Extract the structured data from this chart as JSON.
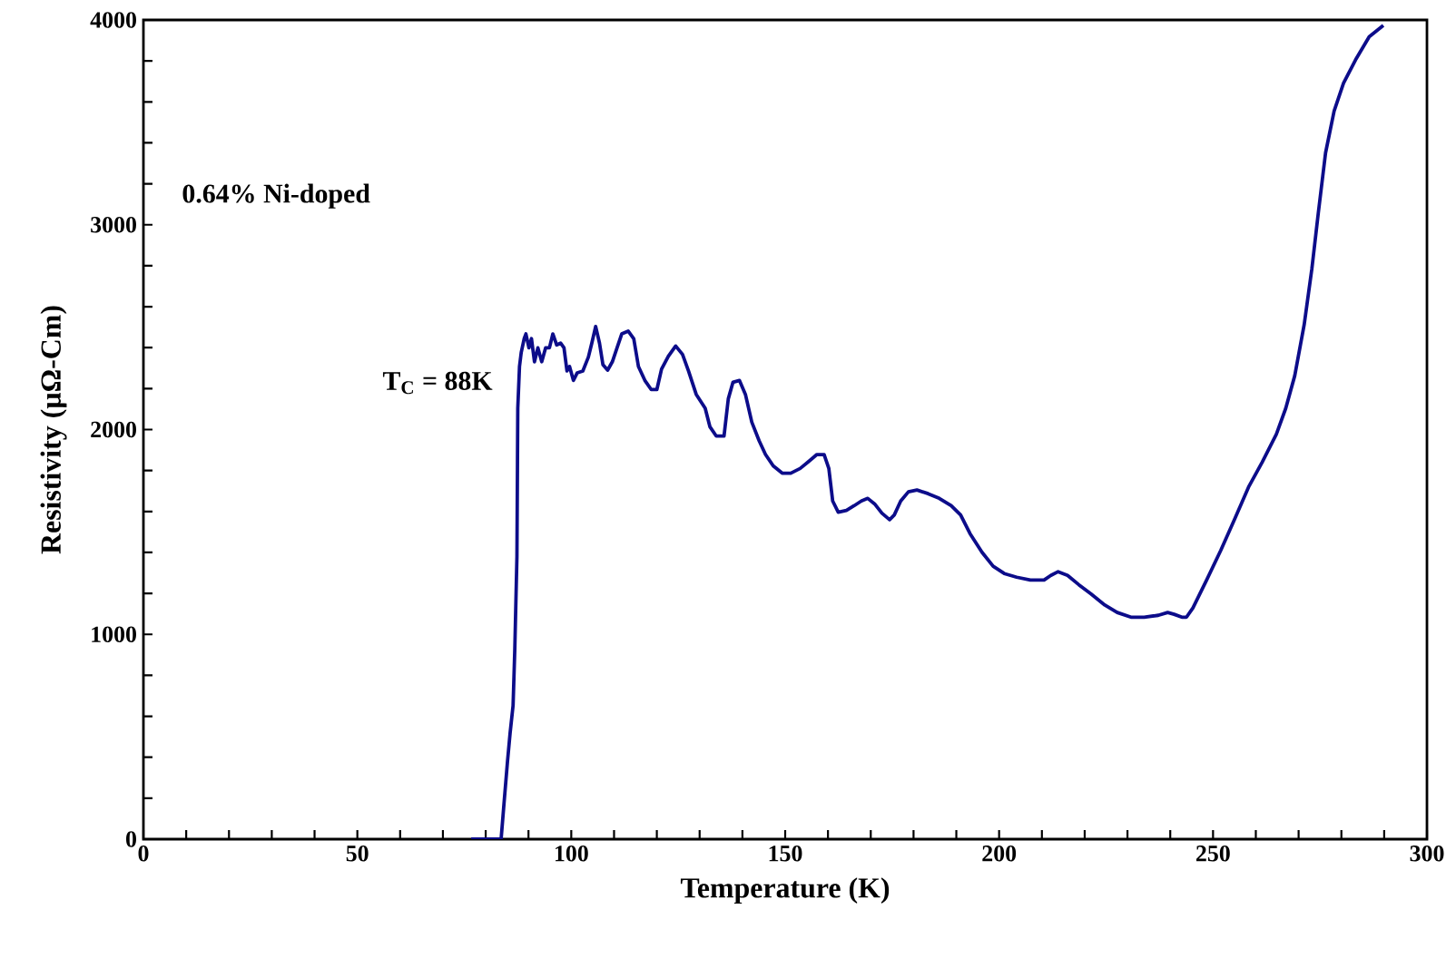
{
  "chart_data": {
    "type": "line",
    "xlabel": "Temperature (K)",
    "ylabel": "Resistivity (µΩ-Cm)",
    "annotations": [
      "0.64% Ni-doped",
      "T$_{C}$ = 88K"
    ],
    "xlim": [
      0,
      300
    ],
    "ylim": [
      0,
      4000
    ],
    "xticks": [
      0,
      {
        "value": 10,
        "label": null
      },
      {
        "value": 20,
        "label": null
      },
      {
        "value": 30,
        "label": null
      },
      {
        "value": 40,
        "label": null
      },
      50,
      {
        "value": 60,
        "label": null
      },
      {
        "value": 70,
        "label": null
      },
      {
        "value": 80,
        "label": null
      },
      {
        "value": 90,
        "label": null
      },
      100,
      {
        "value": 110,
        "label": null
      },
      {
        "value": 120,
        "label": null
      },
      {
        "value": 130,
        "label": null
      },
      {
        "value": 140,
        "label": null
      },
      150,
      {
        "value": 160,
        "label": null
      },
      {
        "value": 170,
        "label": null
      },
      {
        "value": 180,
        "label": null
      },
      {
        "value": 190,
        "label": null
      },
      200,
      {
        "value": 210,
        "label": null
      },
      {
        "value": 220,
        "label": null
      },
      {
        "value": 230,
        "label": null
      },
      {
        "value": 240,
        "label": null
      },
      250,
      {
        "value": 260,
        "label": null
      },
      {
        "value": 270,
        "label": null
      },
      {
        "value": 280,
        "label": null
      },
      {
        "value": 290,
        "label": null
      },
      300
    ],
    "yticks": [
      0,
      {
        "value": 200,
        "label": null
      },
      {
        "value": 400,
        "label": null
      },
      {
        "value": 600,
        "label": null
      },
      {
        "value": 800,
        "label": null
      },
      1000,
      {
        "value": 1200,
        "label": null
      },
      {
        "value": 1400,
        "label": null
      },
      {
        "value": 1600,
        "label": null
      },
      {
        "value": 1800,
        "label": null
      },
      2000,
      {
        "value": 2200,
        "label": null
      },
      {
        "value": 2400,
        "label": null
      },
      {
        "value": 2600,
        "label": null
      },
      {
        "value": 2800,
        "label": null
      },
      3000,
      {
        "value": 3200,
        "label": null
      },
      {
        "value": 3400,
        "label": null
      },
      {
        "value": 3600,
        "label": null
      },
      {
        "value": 3800,
        "label": null
      },
      4000
    ],
    "grid": false,
    "marker": "none",
    "line_style": "solid",
    "series": [
      {
        "color": "#0c0c8a",
        "x": [
          76.6,
          83.6,
          84.2,
          85.1,
          85.7,
          86.4,
          86.8,
          87.3,
          87.5,
          87.9,
          88.3,
          89.0,
          89.4,
          90.1,
          90.7,
          91.4,
          92.2,
          93.1,
          94.0,
          94.9,
          95.7,
          96.6,
          97.5,
          98.3,
          99.0,
          99.6,
          100.5,
          101.4,
          102.7,
          104.0,
          104.8,
          105.7,
          106.6,
          107.4,
          108.5,
          109.6,
          110.7,
          111.8,
          113.3,
          114.6,
          115.7,
          117.2,
          118.7,
          120.0,
          121.1,
          122.7,
          124.4,
          126.0,
          127.4,
          129.2,
          131.3,
          132.4,
          133.9,
          135.7,
          136.7,
          137.8,
          139.3,
          140.7,
          142.2,
          143.9,
          145.4,
          147.2,
          149.3,
          151.3,
          153.5,
          155.6,
          157.4,
          159.1,
          160.2,
          161.1,
          162.4,
          164.3,
          166.1,
          167.8,
          169.3,
          170.9,
          172.6,
          174.4,
          175.5,
          177.0,
          178.8,
          180.8,
          183.4,
          186.0,
          188.8,
          191.0,
          193.2,
          196.0,
          198.6,
          201.2,
          204.1,
          207.3,
          210.5,
          212.1,
          213.8,
          216.0,
          218.6,
          221.5,
          224.7,
          227.6,
          230.8,
          233.9,
          237.2,
          239.4,
          240.9,
          242.7,
          243.8,
          245.3,
          248.5,
          251.8,
          255.0,
          258.3,
          261.5,
          264.8,
          267.0,
          269.1,
          271.3,
          273.1,
          274.6,
          276.3,
          278.3,
          280.5,
          283.3,
          286.5,
          289.8
        ],
        "values": [
          0,
          0,
          154,
          381,
          517,
          653,
          925,
          1379,
          2104,
          2308,
          2376,
          2444,
          2467,
          2399,
          2444,
          2331,
          2399,
          2331,
          2399,
          2399,
          2467,
          2413,
          2422,
          2399,
          2286,
          2308,
          2240,
          2277,
          2286,
          2354,
          2422,
          2503,
          2422,
          2317,
          2290,
          2331,
          2399,
          2467,
          2481,
          2444,
          2308,
          2240,
          2195,
          2195,
          2295,
          2358,
          2408,
          2367,
          2286,
          2172,
          2104,
          2014,
          1968,
          1968,
          2150,
          2231,
          2240,
          2172,
          2036,
          1946,
          1878,
          1823,
          1787,
          1787,
          1810,
          1846,
          1878,
          1878,
          1810,
          1651,
          1596,
          1605,
          1628,
          1651,
          1664,
          1637,
          1592,
          1560,
          1583,
          1651,
          1696,
          1705,
          1687,
          1664,
          1628,
          1583,
          1492,
          1401,
          1333,
          1297,
          1279,
          1265,
          1265,
          1288,
          1306,
          1288,
          1243,
          1197,
          1143,
          1107,
          1084,
          1084,
          1093,
          1107,
          1098,
          1084,
          1084,
          1129,
          1265,
          1410,
          1560,
          1719,
          1841,
          1977,
          2104,
          2263,
          2512,
          2785,
          3057,
          3351,
          3555,
          3692,
          3805,
          3918,
          3973
        ]
      }
    ]
  }
}
